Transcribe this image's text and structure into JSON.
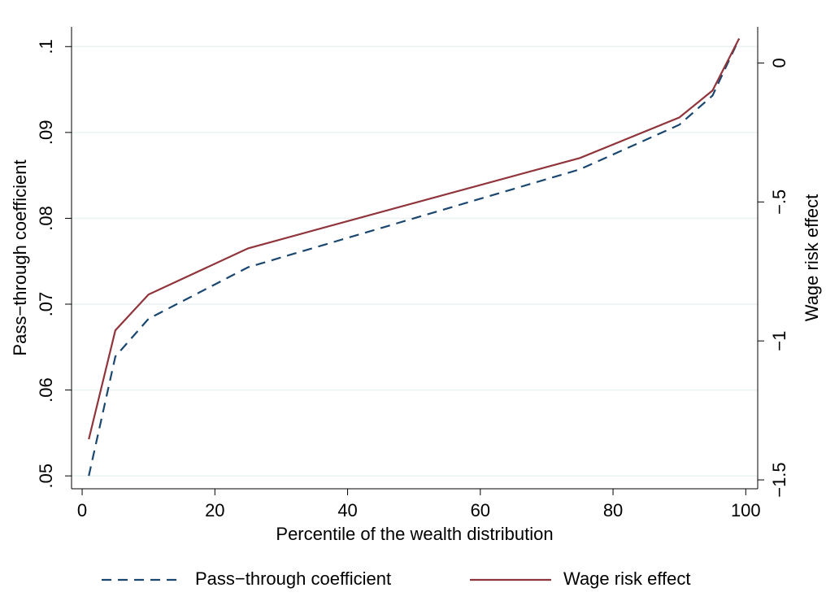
{
  "chart_data": {
    "type": "line",
    "x_label": "Percentile of the wealth distribution",
    "y_label": "Pass−through coefficient",
    "y2_label": "Wage risk effect",
    "x": [
      1,
      5,
      10,
      25,
      50,
      75,
      90,
      95,
      99
    ],
    "series": [
      {
        "name": "Pass−through coefficient",
        "color": "#1a476f",
        "dash": true,
        "values": [
          0.05,
          0.0639,
          0.0683,
          0.0743,
          0.08,
          0.0857,
          0.0909,
          0.0943,
          0.1009
        ]
      },
      {
        "name": "Wage risk effect",
        "color": "#90353b",
        "axis": "y2",
        "values": [
          -1.354,
          -0.962,
          -0.833,
          -0.667,
          -0.504,
          -0.342,
          -0.196,
          -0.099,
          0.088
        ]
      }
    ],
    "xlim": [
      -1.6,
      101.8
    ],
    "xticks": [
      0,
      20,
      40,
      60,
      80,
      100
    ],
    "ylim": [
      0.0485,
      0.1023
    ],
    "yticks": [
      {
        "value": 0.05,
        "label": ".05"
      },
      {
        "value": 0.06,
        "label": ".06"
      },
      {
        "value": 0.07,
        "label": ".07"
      },
      {
        "value": 0.08,
        "label": ".08"
      },
      {
        "value": 0.09,
        "label": ".09"
      },
      {
        "value": 0.1,
        "label": ".1"
      }
    ],
    "y2lim": [
      -1.532,
      0.13
    ],
    "y2ticks": [
      {
        "value": -1.5,
        "label": "−1.5"
      },
      {
        "value": -1,
        "label": "−1"
      },
      {
        "value": -0.5,
        "label": "−.5"
      },
      0
    ],
    "grid": true,
    "legend": "bottom"
  }
}
